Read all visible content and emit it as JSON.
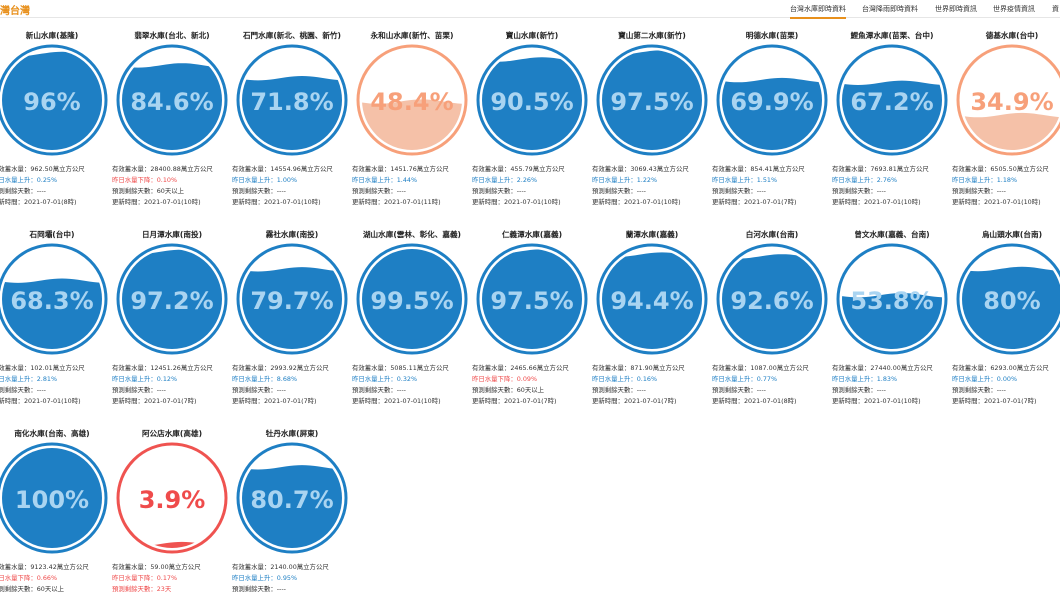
{
  "header": {
    "brand": "灣台灣",
    "nav": [
      {
        "label": "台灣水庫即時資料",
        "active": true
      },
      {
        "label": "台灣降雨即時資料",
        "active": false
      },
      {
        "label": "世界即時資訊",
        "active": false
      },
      {
        "label": "世界疫情資訊",
        "active": false
      },
      {
        "label": "資",
        "active": false
      }
    ]
  },
  "colors": {
    "normal": "#1e7fc4",
    "normal_text": "#a9d4f1",
    "low": "#f7a07a",
    "low_fill": "#f5c1a8",
    "critical": "#ef5350",
    "critical_text": "#ef4b4b"
  },
  "labels": {
    "storage_prefix": "有效蓄水量：",
    "storage_unit": "萬立方公尺",
    "days_prefix": "預測剩餘天數：",
    "updated_prefix": "更新時間："
  },
  "reservoirs": [
    {
      "name": "新山水庫(基隆)",
      "pct": 96,
      "pct_label": "96%",
      "status": "normal",
      "storage": "962.50",
      "trend": "up",
      "trend_text": "昨日水量上升：0.25%",
      "days": "----",
      "updated": "2021-07-01(8時)"
    },
    {
      "name": "翡翠水庫(台北、新北)",
      "pct": 84.6,
      "pct_label": "84.6%",
      "status": "normal",
      "storage": "28400.88",
      "trend": "down",
      "trend_text": "昨日水量下降：0.10%",
      "days": "60天以上",
      "updated": "2021-07-01(10時)"
    },
    {
      "name": "石門水庫(新北、桃園、新竹)",
      "pct": 71.8,
      "pct_label": "71.8%",
      "status": "normal",
      "storage": "14554.96",
      "trend": "up",
      "trend_text": "昨日水量上升：1.00%",
      "days": "----",
      "updated": "2021-07-01(10時)"
    },
    {
      "name": "永和山水庫(新竹、苗栗)",
      "pct": 48.4,
      "pct_label": "48.4%",
      "status": "low",
      "storage": "1451.76",
      "trend": "up",
      "trend_text": "昨日水量上升：1.44%",
      "days": "----",
      "updated": "2021-07-01(11時)"
    },
    {
      "name": "寶山水庫(新竹)",
      "pct": 90.5,
      "pct_label": "90.5%",
      "status": "normal",
      "storage": "455.79",
      "trend": "up",
      "trend_text": "昨日水量上升：2.26%",
      "days": "----",
      "updated": "2021-07-01(10時)"
    },
    {
      "name": "寶山第二水庫(新竹)",
      "pct": 97.5,
      "pct_label": "97.5%",
      "status": "normal",
      "storage": "3069.43",
      "trend": "up",
      "trend_text": "昨日水量上升：1.22%",
      "days": "----",
      "updated": "2021-07-01(10時)"
    },
    {
      "name": "明德水庫(苗栗)",
      "pct": 69.9,
      "pct_label": "69.9%",
      "status": "normal",
      "storage": "854.41",
      "trend": "up",
      "trend_text": "昨日水量上升：1.51%",
      "days": "----",
      "updated": "2021-07-01(7時)"
    },
    {
      "name": "鯉魚潭水庫(苗栗、台中)",
      "pct": 67.2,
      "pct_label": "67.2%",
      "status": "normal",
      "storage": "7693.81",
      "trend": "up",
      "trend_text": "昨日水量上升：2.76%",
      "days": "----",
      "updated": "2021-07-01(10時)"
    },
    {
      "name": "德基水庫(台中)",
      "pct": 34.9,
      "pct_label": "34.9%",
      "status": "low",
      "storage": "6505.50",
      "trend": "up",
      "trend_text": "昨日水量上升：1.18%",
      "days": "----",
      "updated": "2021-07-01(10時)"
    },
    {
      "name": "石岡壩(台中)",
      "pct": 68.3,
      "pct_label": "68.3%",
      "status": "normal",
      "storage": "102.01",
      "trend": "up",
      "trend_text": "昨日水量上升：2.81%",
      "days": "----",
      "updated": "2021-07-01(10時)"
    },
    {
      "name": "日月潭水庫(南投)",
      "pct": 97.2,
      "pct_label": "97.2%",
      "status": "normal",
      "storage": "12451.26",
      "trend": "up",
      "trend_text": "昨日水量上升：0.12%",
      "days": "----",
      "updated": "2021-07-01(7時)"
    },
    {
      "name": "霧社水庫(南投)",
      "pct": 79.7,
      "pct_label": "79.7%",
      "status": "normal",
      "storage": "2993.92",
      "trend": "up",
      "trend_text": "昨日水量上升：8.68%",
      "days": "----",
      "updated": "2021-07-01(7時)"
    },
    {
      "name": "湖山水庫(雲林、彰化、嘉義)",
      "pct": 99.5,
      "pct_label": "99.5%",
      "status": "normal",
      "storage": "5085.11",
      "trend": "up",
      "trend_text": "昨日水量上升：0.32%",
      "days": "----",
      "updated": "2021-07-01(10時)"
    },
    {
      "name": "仁義潭水庫(嘉義)",
      "pct": 97.5,
      "pct_label": "97.5%",
      "status": "normal",
      "storage": "2465.66",
      "trend": "down",
      "trend_text": "昨日水量下降：0.09%",
      "days": "60天以上",
      "updated": "2021-07-01(7時)"
    },
    {
      "name": "蘭潭水庫(嘉義)",
      "pct": 94.4,
      "pct_label": "94.4%",
      "status": "normal",
      "storage": "871.90",
      "trend": "up",
      "trend_text": "昨日水量上升：0.16%",
      "days": "----",
      "updated": "2021-07-01(7時)"
    },
    {
      "name": "白河水庫(台南)",
      "pct": 92.6,
      "pct_label": "92.6%",
      "status": "normal",
      "storage": "1087.00",
      "trend": "up",
      "trend_text": "昨日水量上升：0.77%",
      "days": "----",
      "updated": "2021-07-01(8時)"
    },
    {
      "name": "曾文水庫(嘉義、台南)",
      "pct": 53.8,
      "pct_label": "53.8%",
      "status": "normal",
      "storage": "27440.00",
      "trend": "up",
      "trend_text": "昨日水量上升：1.83%",
      "days": "----",
      "updated": "2021-07-01(10時)"
    },
    {
      "name": "烏山頭水庫(台南)",
      "pct": 80,
      "pct_label": "80%",
      "status": "normal",
      "storage": "6293.00",
      "trend": "up",
      "trend_text": "昨日水量上升：0.00%",
      "days": "----",
      "updated": "2021-07-01(7時)"
    },
    {
      "name": "南化水庫(台南、高雄)",
      "pct": 100,
      "pct_label": "100%",
      "status": "normal",
      "storage": "9123.42",
      "trend": "down",
      "trend_text": "昨日水量下降：0.66%",
      "days": "60天以上",
      "updated": ""
    },
    {
      "name": "阿公店水庫(高雄)",
      "pct": 3.9,
      "pct_label": "3.9%",
      "status": "critical",
      "storage": "59.00",
      "trend": "down",
      "trend_text": "昨日水量下降：0.17%",
      "days": "23天",
      "updated": ""
    },
    {
      "name": "牡丹水庫(屏東)",
      "pct": 80.7,
      "pct_label": "80.7%",
      "status": "normal",
      "storage": "2140.00",
      "trend": "up",
      "trend_text": "昨日水量上升：0.95%",
      "days": "----",
      "updated": ""
    }
  ]
}
